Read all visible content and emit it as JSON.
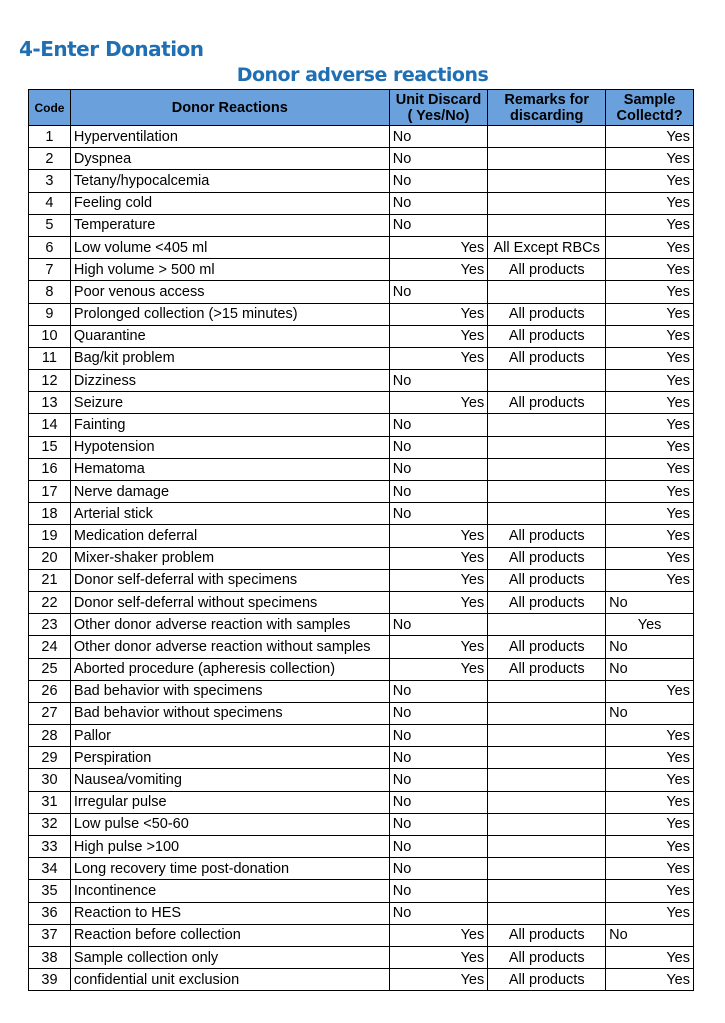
{
  "section_title": "4-Enter Donation",
  "table_title": "Donor adverse reactions",
  "headers": {
    "code": "Code",
    "reaction": "Donor Reactions",
    "discard": "Unit Discard ( Yes/No)",
    "remarks": "Remarks for discarding",
    "sample": "Sample Collectd?"
  },
  "rows": [
    [
      "1",
      "Hyperventilation",
      "No",
      "",
      "Yes"
    ],
    [
      "2",
      "Dyspnea",
      "No",
      "",
      "Yes"
    ],
    [
      "3",
      "Tetany/hypocalcemia",
      "No",
      "",
      "Yes"
    ],
    [
      "4",
      "Feeling cold",
      "No",
      "",
      "Yes"
    ],
    [
      "5",
      "Temperature",
      "No",
      "",
      "Yes"
    ],
    [
      "6",
      "Low volume <405 ml",
      "Yes",
      "All Except RBCs",
      "Yes"
    ],
    [
      "7",
      "High volume > 500 ml",
      "Yes",
      "All products",
      "Yes"
    ],
    [
      "8",
      "Poor venous access",
      "No",
      "",
      "Yes"
    ],
    [
      "9",
      "Prolonged collection (>15 minutes)",
      "Yes",
      "All products",
      "Yes"
    ],
    [
      "10",
      "Quarantine",
      "Yes",
      "All products",
      "Yes"
    ],
    [
      "11",
      "Bag/kit problem",
      "Yes",
      "All products",
      "Yes"
    ],
    [
      "12",
      "Dizziness",
      "No",
      "",
      "Yes"
    ],
    [
      "13",
      "Seizure",
      "Yes",
      "All products",
      "Yes"
    ],
    [
      "14",
      "Fainting",
      "No",
      "",
      "Yes"
    ],
    [
      "15",
      "Hypotension",
      "No",
      "",
      "Yes"
    ],
    [
      "16",
      "Hematoma",
      "No",
      "",
      "Yes"
    ],
    [
      "17",
      "Nerve damage",
      "No",
      "",
      "Yes"
    ],
    [
      "18",
      "Arterial stick",
      "No",
      "",
      "Yes"
    ],
    [
      "19",
      "Medication deferral",
      "Yes",
      "All products",
      "Yes"
    ],
    [
      "20",
      "Mixer-shaker problem",
      "Yes",
      "All products",
      "Yes"
    ],
    [
      "21",
      "Donor self-deferral with specimens",
      "Yes",
      "All products",
      "Yes"
    ],
    [
      "22",
      "Donor self-deferral without specimens",
      "Yes",
      "All products",
      "No"
    ],
    [
      "23",
      "Other donor adverse reaction with samples",
      "No",
      "",
      "Yes"
    ],
    [
      "24",
      "Other donor adverse reaction without samples",
      "Yes",
      "All products",
      "No"
    ],
    [
      "25",
      "Aborted procedure (apheresis collection)",
      "Yes",
      "All products",
      "No"
    ],
    [
      "26",
      "Bad behavior with specimens",
      "No",
      "",
      "Yes"
    ],
    [
      "27",
      "Bad behavior without specimens",
      "No",
      "",
      "No"
    ],
    [
      "28",
      "Pallor",
      "No",
      "",
      "Yes"
    ],
    [
      "29",
      "Perspiration",
      "No",
      "",
      "Yes"
    ],
    [
      "30",
      "Nausea/vomiting",
      "No",
      "",
      "Yes"
    ],
    [
      "31",
      "Irregular pulse",
      "No",
      "",
      "Yes"
    ],
    [
      "32",
      "Low pulse <50-60",
      "No",
      "",
      "Yes"
    ],
    [
      "33",
      "High pulse >100",
      "No",
      "",
      "Yes"
    ],
    [
      "34",
      "Long recovery  time post-donation",
      "No",
      "",
      "Yes"
    ],
    [
      "35",
      "Incontinence",
      "No",
      "",
      "Yes"
    ],
    [
      "36",
      "Reaction to HES",
      "No",
      "",
      "Yes"
    ],
    [
      "37",
      "Reaction before collection",
      "Yes",
      "All products",
      "No"
    ],
    [
      "38",
      "Sample collection only",
      "Yes",
      "All products",
      "Yes"
    ],
    [
      "39",
      "confidential unit exclusion",
      "Yes",
      "All products",
      "Yes"
    ]
  ]
}
